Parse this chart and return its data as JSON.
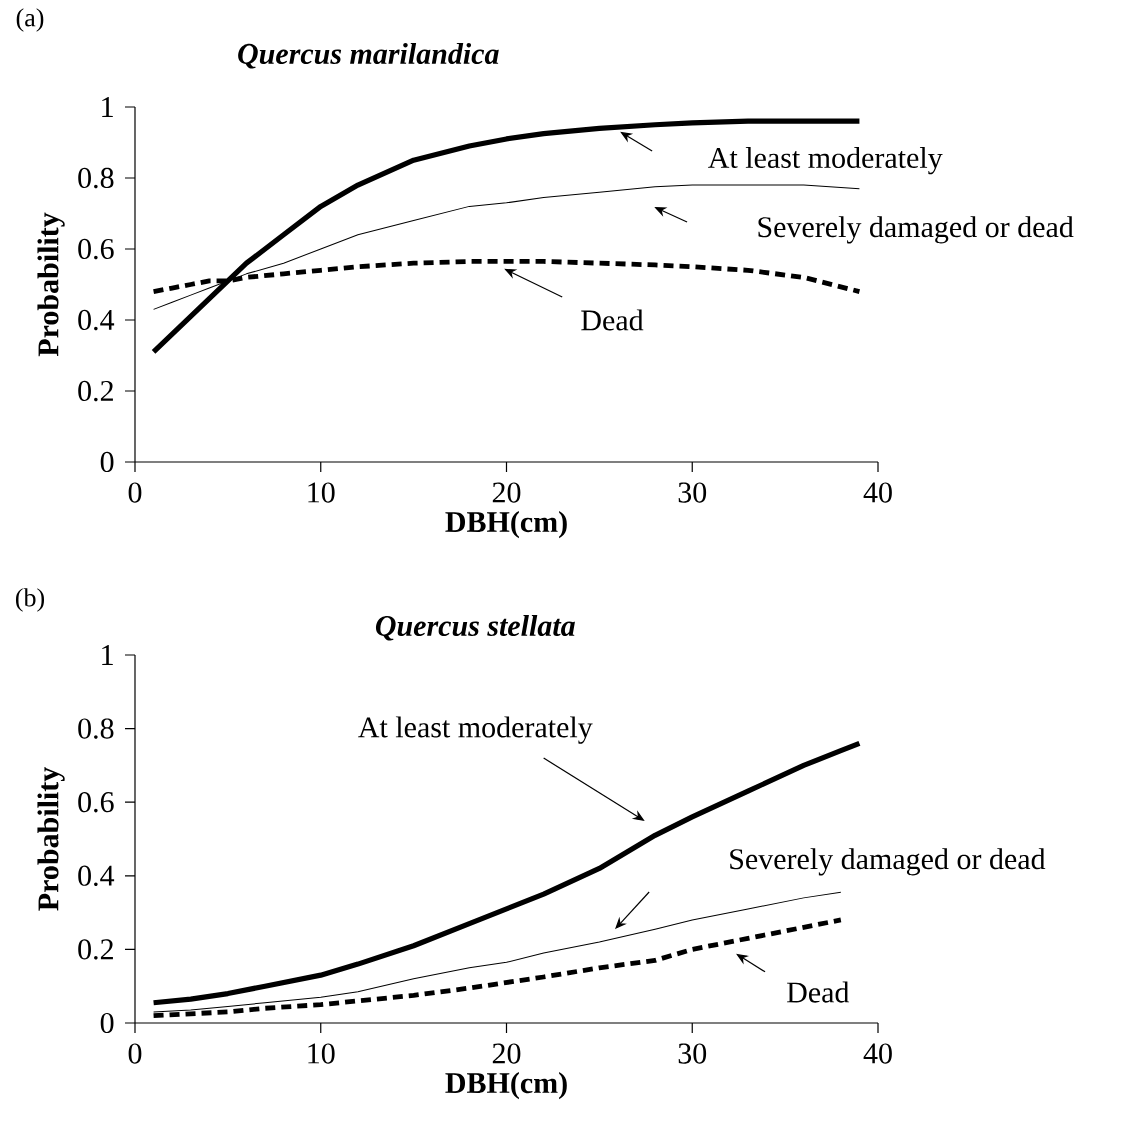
{
  "chart_data": [
    {
      "type": "line",
      "title": "Quercus marilandica",
      "xlabel": "DBH(cm)",
      "ylabel": "Probability",
      "x": [
        1,
        2,
        3,
        4,
        5,
        6,
        8,
        10,
        12,
        15,
        18,
        20,
        22,
        25,
        28,
        30,
        33,
        36,
        39
      ],
      "series": [
        {
          "color": "#000000",
          "line_style": "solid",
          "values": [
            0.31,
            0.36,
            0.41,
            0.46,
            0.51,
            0.56,
            0.64,
            0.72,
            0.78,
            0.85,
            0.89,
            0.91,
            0.925,
            0.94,
            0.95,
            0.955,
            0.96,
            0.96,
            0.96
          ]
        },
        {
          "color": "#000000",
          "line_style": "solid",
          "values": [
            0.43,
            0.45,
            0.47,
            0.49,
            0.51,
            0.53,
            0.56,
            0.6,
            0.64,
            0.68,
            0.72,
            0.73,
            0.745,
            0.76,
            0.775,
            0.78,
            0.78,
            0.78,
            0.77
          ]
        },
        {
          "color": "#000000",
          "line_style": "dashed",
          "values": [
            0.48,
            0.49,
            0.5,
            0.51,
            0.51,
            0.52,
            0.53,
            0.54,
            0.55,
            0.56,
            0.565,
            0.565,
            0.565,
            0.56,
            0.555,
            0.55,
            0.54,
            0.52,
            0.48
          ]
        }
      ],
      "xlim": [
        0,
        40
      ],
      "ylim": [
        0,
        1
      ],
      "xticks": [
        0,
        10,
        20,
        30,
        40
      ],
      "yticks": [
        0,
        0.2,
        0.4,
        0.6,
        0.8,
        1
      ],
      "grid": false,
      "legend": false,
      "annotations": [
        "(a)",
        "At least moderately",
        "Severely damaged or dead",
        "Dead"
      ]
    },
    {
      "type": "line",
      "title": "Quercus stellata",
      "xlabel": "DBH(cm)",
      "ylabel": "Probability",
      "x": [
        1,
        3,
        5,
        7,
        10,
        12,
        15,
        18,
        20,
        22,
        25,
        28,
        30,
        33,
        36,
        38,
        39
      ],
      "series": [
        {
          "color": "#000000",
          "line_style": "solid",
          "values": [
            0.055,
            0.065,
            0.08,
            0.1,
            0.13,
            0.16,
            0.21,
            0.27,
            0.31,
            0.35,
            0.42,
            0.51,
            0.56,
            0.63,
            0.7,
            0.74,
            0.76
          ]
        },
        {
          "color": "#000000",
          "line_style": "solid",
          "values": [
            0.03,
            0.035,
            0.045,
            0.055,
            0.07,
            0.085,
            0.12,
            0.15,
            0.165,
            0.19,
            0.22,
            0.255,
            0.28,
            0.31,
            0.34,
            0.355,
            null
          ]
        },
        {
          "color": "#000000",
          "line_style": "dashed",
          "values": [
            0.02,
            0.025,
            0.03,
            0.04,
            0.05,
            0.06,
            0.075,
            0.095,
            0.11,
            0.125,
            0.15,
            0.17,
            0.2,
            0.23,
            0.26,
            0.28,
            null
          ]
        }
      ],
      "xlim": [
        0,
        40
      ],
      "ylim": [
        0,
        1
      ],
      "xticks": [
        0,
        10,
        20,
        30,
        40
      ],
      "yticks": [
        0,
        0.2,
        0.4,
        0.6,
        0.8,
        1
      ],
      "grid": false,
      "legend": false,
      "annotations": [
        "(b)",
        "At least moderately",
        "Severely damaged or dead",
        "Dead"
      ]
    }
  ]
}
